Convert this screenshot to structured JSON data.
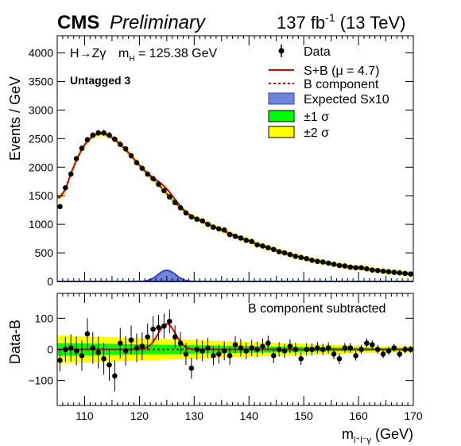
{
  "header": {
    "experiment": "CMS",
    "status": "Preliminary",
    "lumi_value": "137 fb",
    "lumi_exp": "-1",
    "lumi_energy": " (13 TeV)"
  },
  "annotations": {
    "process": "H→Zγ",
    "mass_label": "m",
    "mass_sub": "H",
    "mass_value": " = 125.38 GeV",
    "category": "Untagged 3",
    "lower_note": "B component subtracted"
  },
  "legend": {
    "data": "Data",
    "sb": "S+B (μ = 4.7)",
    "bkg": "B component",
    "signal": "Expected Sx10",
    "band1": "±1 σ",
    "band2": "±2 σ"
  },
  "colors": {
    "fit": "#e00000",
    "signal_fill": "#6f86d6",
    "signal_line": "#3344cc",
    "band1": "#00ff00",
    "band2": "#ffff00",
    "data": "#000000"
  },
  "chart_data": [
    {
      "panel": "upper",
      "type": "scatter",
      "ylabel": "Events / GeV",
      "xlim": [
        105,
        170
      ],
      "ylim": [
        0,
        4300
      ],
      "yticks": [
        0,
        500,
        1000,
        1500,
        2000,
        2500,
        3000,
        3500,
        4000
      ],
      "data_x": [
        105.5,
        106.5,
        107.5,
        108.5,
        109.5,
        110.5,
        111.5,
        112.5,
        113.5,
        114.5,
        115.5,
        116.5,
        117.5,
        118.5,
        119.5,
        120.5,
        121.5,
        122.5,
        123.5,
        124.5,
        125.5,
        126.5,
        127.5,
        128.5,
        129.5,
        130.5,
        131.5,
        132.5,
        133.5,
        134.5,
        135.5,
        136.5,
        137.5,
        138.5,
        139.5,
        140.5,
        141.5,
        142.5,
        143.5,
        144.5,
        145.5,
        146.5,
        147.5,
        148.5,
        149.5,
        150.5,
        151.5,
        152.5,
        153.5,
        154.5,
        155.5,
        156.5,
        157.5,
        158.5,
        159.5,
        160.5,
        161.5,
        162.5,
        163.5,
        164.5,
        165.5,
        166.5,
        167.5,
        168.5,
        169.5
      ],
      "data_y": [
        1310,
        1640,
        1880,
        2150,
        2330,
        2480,
        2560,
        2600,
        2600,
        2560,
        2490,
        2400,
        2320,
        2200,
        2080,
        1980,
        1880,
        1800,
        1700,
        1590,
        1480,
        1380,
        1290,
        1200,
        1130,
        1090,
        1060,
        1000,
        950,
        920,
        900,
        820,
        790,
        760,
        720,
        700,
        640,
        620,
        590,
        560,
        520,
        500,
        470,
        440,
        420,
        400,
        370,
        350,
        340,
        320,
        300,
        280,
        270,
        250,
        240,
        240,
        220,
        200,
        190,
        180,
        170,
        160,
        150,
        140,
        130
      ],
      "data_err": [
        36,
        40,
        43,
        46,
        48,
        50,
        51,
        51,
        51,
        51,
        50,
        49,
        48,
        47,
        46,
        45,
        43,
        42,
        41,
        40,
        38,
        37,
        36,
        35,
        34,
        33,
        33,
        32,
        31,
        30,
        30,
        29,
        28,
        28,
        27,
        26,
        25,
        25,
        24,
        24,
        23,
        22,
        22,
        21,
        20,
        20,
        19,
        19,
        18,
        18,
        17,
        17,
        16,
        16,
        16,
        15,
        15,
        14,
        14,
        13,
        13,
        13,
        12,
        12,
        11
      ],
      "signal_peak_x": 125.0,
      "signal_peak_y": 195,
      "signal_sigma": 1.6
    },
    {
      "panel": "lower",
      "type": "scatter",
      "xlabel": "m",
      "xlabel_sub": "l⁺l⁻γ",
      "xlabel_unit": " (GeV)",
      "ylabel": "Data-B",
      "xlim": [
        105,
        170
      ],
      "ylim": [
        -180,
        180
      ],
      "yticks": [
        -100,
        0,
        100
      ],
      "xticks": [
        110,
        120,
        130,
        140,
        150,
        160,
        170
      ],
      "data_x": [
        105.5,
        106.5,
        107.5,
        108.5,
        109.5,
        110.5,
        111.5,
        112.5,
        113.5,
        114.5,
        115.5,
        116.5,
        117.5,
        118.5,
        119.5,
        120.5,
        121.5,
        122.5,
        123.5,
        124.5,
        125.5,
        126.5,
        127.5,
        128.5,
        129.5,
        130.5,
        131.5,
        132.5,
        133.5,
        134.5,
        135.5,
        136.5,
        137.5,
        138.5,
        139.5,
        140.5,
        141.5,
        142.5,
        143.5,
        144.5,
        145.5,
        146.5,
        147.5,
        148.5,
        149.5,
        150.5,
        151.5,
        152.5,
        153.5,
        154.5,
        155.5,
        156.5,
        157.5,
        158.5,
        159.5,
        160.5,
        161.5,
        162.5,
        163.5,
        164.5,
        165.5,
        166.5,
        167.5,
        168.5,
        169.5
      ],
      "data_y": [
        -35,
        0,
        5,
        -5,
        -20,
        50,
        5,
        -10,
        -30,
        -50,
        -85,
        20,
        -5,
        30,
        5,
        10,
        40,
        65,
        70,
        75,
        90,
        40,
        20,
        -15,
        -60,
        0,
        -5,
        5,
        -20,
        -15,
        -5,
        -20,
        15,
        5,
        -5,
        5,
        0,
        10,
        20,
        -20,
        0,
        -5,
        10,
        0,
        -30,
        0,
        0,
        5,
        0,
        5,
        -15,
        -30,
        5,
        5,
        -20,
        0,
        20,
        15,
        0,
        -15,
        -5,
        5,
        -15,
        0,
        0
      ],
      "data_err": [
        36,
        40,
        43,
        46,
        48,
        50,
        51,
        51,
        51,
        51,
        50,
        49,
        48,
        47,
        46,
        45,
        43,
        42,
        41,
        40,
        38,
        37,
        36,
        35,
        34,
        33,
        33,
        32,
        31,
        30,
        30,
        29,
        28,
        28,
        27,
        26,
        25,
        25,
        24,
        24,
        23,
        22,
        22,
        21,
        20,
        20,
        19,
        19,
        18,
        18,
        17,
        17,
        16,
        16,
        16,
        15,
        15,
        14,
        14,
        13,
        13,
        13,
        12,
        12,
        11
      ],
      "fit_peak_y": 82
    }
  ]
}
